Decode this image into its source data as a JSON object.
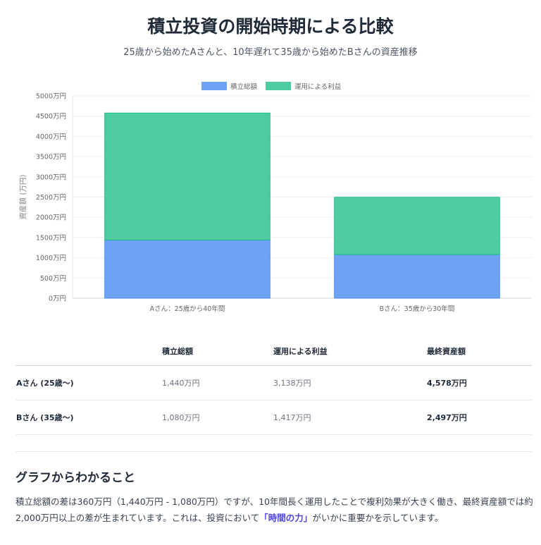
{
  "header": {
    "title": "積立投資の開始時期による比較",
    "subtitle": "25歳から始めたAさんと、10年遅れて35歳から始めたBさんの資産推移"
  },
  "chart_data": {
    "type": "bar",
    "stacked": true,
    "categories": [
      "Aさん：25歳から40年間",
      "Bさん：35歳から30年間"
    ],
    "series": [
      {
        "name": "積立総額",
        "values": [
          1440,
          1080
        ],
        "color": "#6ea2f5"
      },
      {
        "name": "運用による利益",
        "values": [
          3138,
          1417
        ],
        "color": "#4ecb9f"
      }
    ],
    "ylabel": "資産額 (万円)",
    "ylim": [
      0,
      5000
    ],
    "yticks": [
      "0万円",
      "500万円",
      "1000万円",
      "1500万円",
      "2000万円",
      "2500万円",
      "3000万円",
      "3500万円",
      "4000万円",
      "4500万円",
      "5000万円"
    ],
    "grid": true,
    "legend": "top"
  },
  "table": {
    "headers": [
      "",
      "積立総額",
      "運用による利益",
      "最終資産額"
    ],
    "rows": [
      [
        "Aさん (25歳〜)",
        "1,440万円",
        "3,138万円",
        "4,578万円"
      ],
      [
        "Bさん (35歳〜)",
        "1,080万円",
        "1,417万円",
        "2,497万円"
      ]
    ]
  },
  "insight": {
    "heading": "グラフからわかること",
    "text_before": "積立総額の差は360万円（1,440万円 - 1,080万円）ですが、10年間長く運用したことで複利効果が大きく働き、最終資産額では約2,000万円以上の差が生まれています。これは、投資において",
    "highlight": "「時間の力」",
    "text_after": "がいかに重要かを示しています。"
  }
}
